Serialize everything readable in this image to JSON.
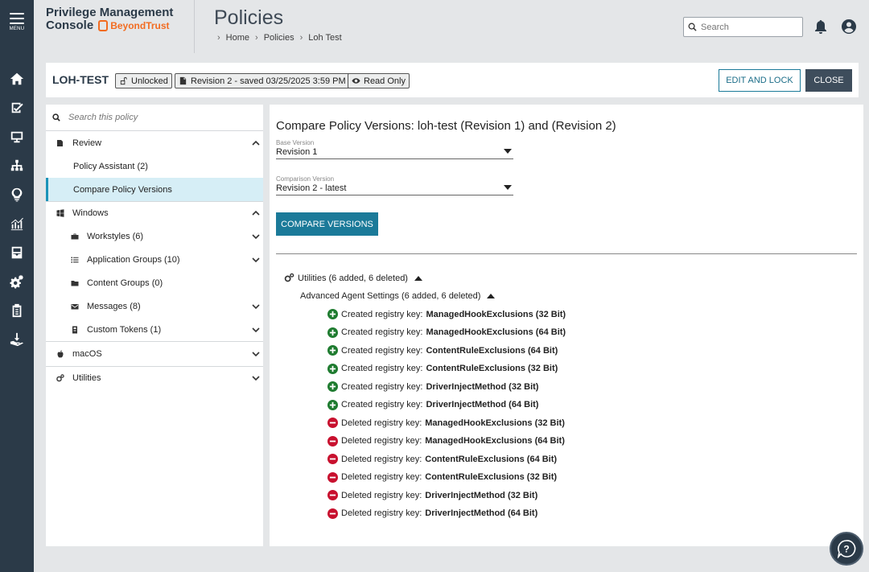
{
  "rail": {
    "menu_label": "MENU",
    "items": [
      "home-icon",
      "checklist-icon",
      "monitor-icon",
      "hierarchy-icon",
      "lightbulb-icon",
      "analytics-icon",
      "inbox-icon",
      "settings-icon",
      "clipboard-icon",
      "deploy-icon"
    ]
  },
  "header": {
    "brand_line1": "Privilege Management",
    "brand_line2": "Console",
    "brand_logo": "BeyondTrust",
    "page_title": "Policies",
    "breadcrumb": [
      "Home",
      "Policies",
      "Loh Test"
    ],
    "search_placeholder": "Search"
  },
  "policy": {
    "name": "LOH-TEST",
    "lock_status": "Unlocked",
    "revision": "Revision 2 - saved 03/25/2025 3:59 PM",
    "mode": "Read Only",
    "edit_lock_label": "EDIT AND LOCK",
    "close_label": "CLOSE"
  },
  "tree": {
    "search_placeholder": "Search this policy",
    "review": "Review",
    "policy_assistant": "Policy Assistant (2)",
    "compare_versions": "Compare Policy Versions",
    "windows": "Windows",
    "workstyles": "Workstyles (6)",
    "app_groups": "Application Groups (10)",
    "content_groups": "Content Groups (0)",
    "messages": "Messages (8)",
    "custom_tokens": "Custom Tokens (1)",
    "macos": "macOS",
    "utilities": "Utilities"
  },
  "main": {
    "title": "Compare Policy Versions: loh-test (Revision 1) and (Revision 2)",
    "base_label": "Base Version",
    "base_value": "Revision 1",
    "comparison_label": "Comparison Version",
    "comparison_value": "Revision 2 - latest",
    "compare_button": "COMPARE VERSIONS",
    "group_title": "Utilities (6 added, 6 deleted)",
    "subgroup_title": "Advanced Agent Settings (6 added, 6 deleted)",
    "changes": [
      {
        "type": "add",
        "prefix": "Created registry key:",
        "key": "ManagedHookExclusions (32 Bit)"
      },
      {
        "type": "add",
        "prefix": "Created registry key:",
        "key": "ManagedHookExclusions (64 Bit)"
      },
      {
        "type": "add",
        "prefix": "Created registry key:",
        "key": "ContentRuleExclusions (64 Bit)"
      },
      {
        "type": "add",
        "prefix": "Created registry key:",
        "key": "ContentRuleExclusions (32 Bit)"
      },
      {
        "type": "add",
        "prefix": "Created registry key:",
        "key": "DriverInjectMethod (32 Bit)"
      },
      {
        "type": "add",
        "prefix": "Created registry key:",
        "key": "DriverInjectMethod (64 Bit)"
      },
      {
        "type": "del",
        "prefix": "Deleted registry key:",
        "key": "ManagedHookExclusions (32 Bit)"
      },
      {
        "type": "del",
        "prefix": "Deleted registry key:",
        "key": "ManagedHookExclusions (64 Bit)"
      },
      {
        "type": "del",
        "prefix": "Deleted registry key:",
        "key": "ContentRuleExclusions (64 Bit)"
      },
      {
        "type": "del",
        "prefix": "Deleted registry key:",
        "key": "ContentRuleExclusions (32 Bit)"
      },
      {
        "type": "del",
        "prefix": "Deleted registry key:",
        "key": "DriverInjectMethod (32 Bit)"
      },
      {
        "type": "del",
        "prefix": "Deleted registry key:",
        "key": "DriverInjectMethod (64 Bit)"
      }
    ]
  },
  "colors": {
    "rail": "#2b3a48",
    "accent": "#1b7a99",
    "added": "#1e7b2f",
    "deleted": "#c8102e",
    "brand_orange": "#f26c21"
  }
}
